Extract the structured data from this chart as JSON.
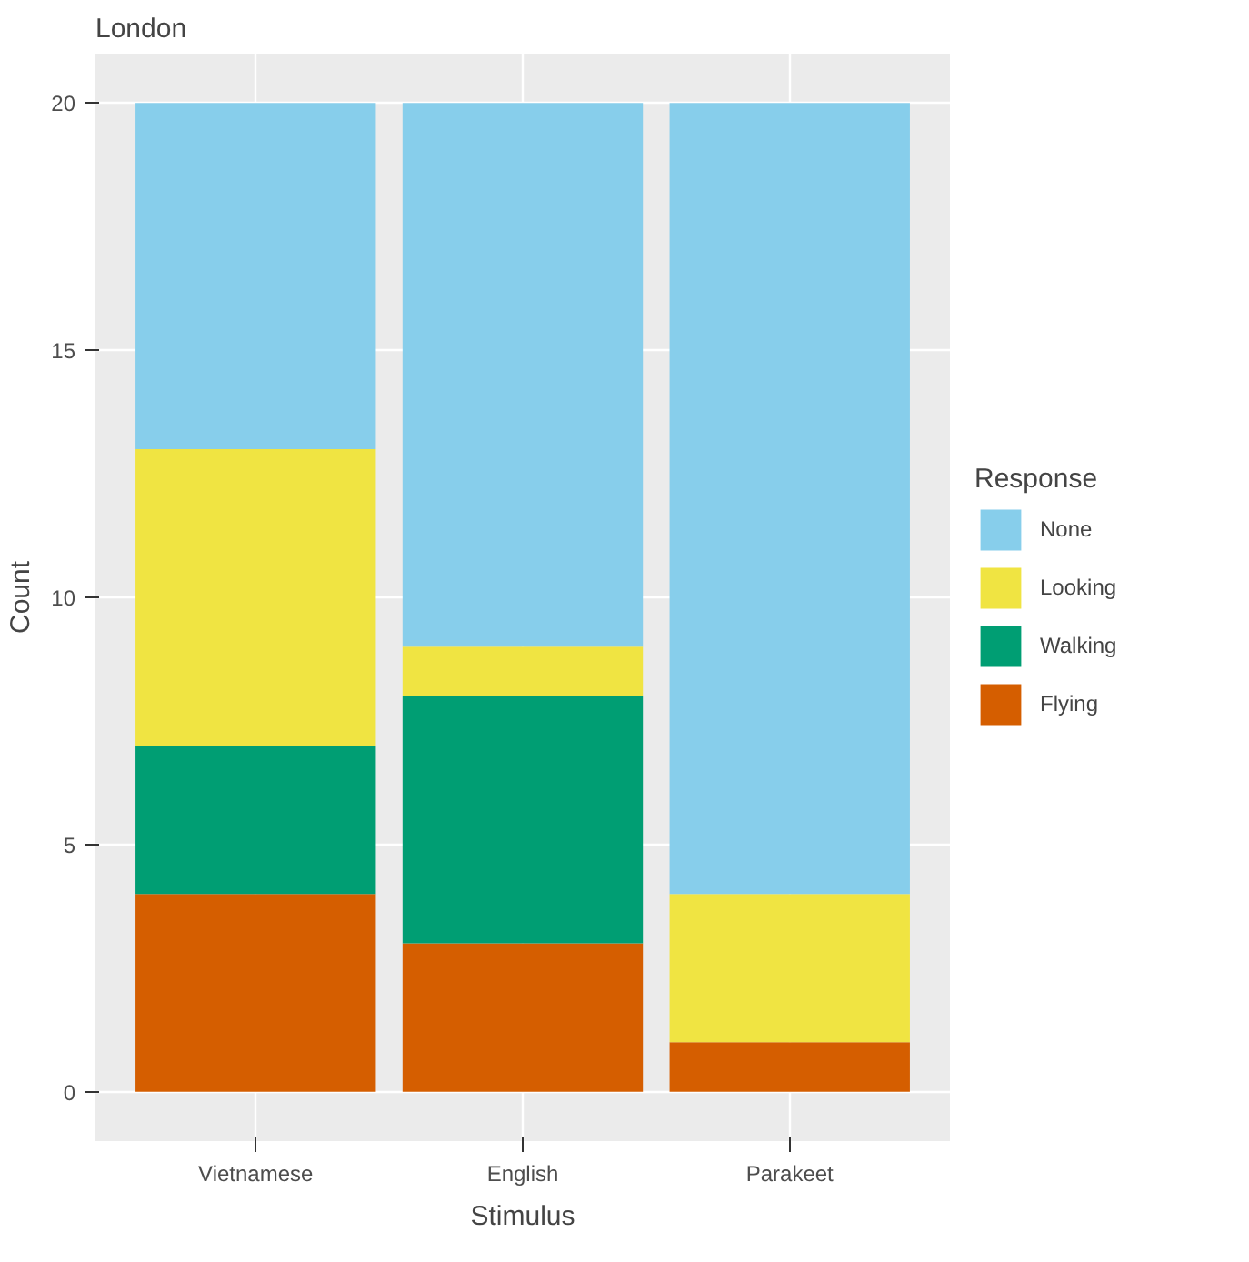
{
  "chart_data": {
    "type": "bar",
    "title": "London",
    "xlabel": "Stimulus",
    "ylabel": "Count",
    "legend_title": "Response",
    "categories": [
      "Vietnamese",
      "English",
      "Parakeet"
    ],
    "stacked": true,
    "ylim": [
      -1,
      21
    ],
    "yticks": [
      0,
      5,
      10,
      15,
      20
    ],
    "grid": true,
    "legend": "right",
    "series": [
      {
        "name": "Flying",
        "color": "#d55e00",
        "values": [
          4,
          3,
          1
        ]
      },
      {
        "name": "Walking",
        "color": "#009e73",
        "values": [
          3,
          5,
          0
        ]
      },
      {
        "name": "Looking",
        "color": "#f0e442",
        "values": [
          6,
          1,
          3
        ]
      },
      {
        "name": "None",
        "color": "#87ceeb",
        "values": [
          7,
          11,
          16
        ]
      }
    ]
  }
}
